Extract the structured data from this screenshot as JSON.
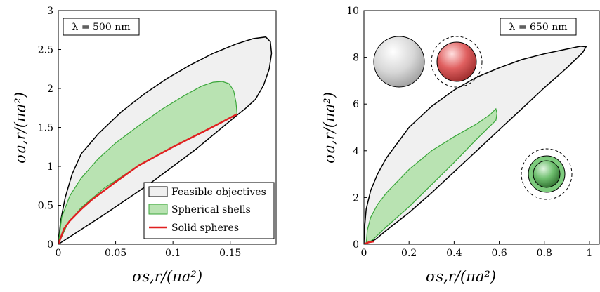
{
  "chart_data": [
    {
      "type": "area",
      "annotation": "λ = 500 nm",
      "xlabel": "σs,r/(πa²)",
      "ylabel": "σa,r/(πa²)",
      "xlim": [
        0,
        0.19
      ],
      "ylim": [
        0,
        3
      ],
      "xticks": [
        "0",
        "0.05",
        "0.1",
        "0.15"
      ],
      "xtick_values": [
        0,
        0.05,
        0.1,
        0.15
      ],
      "yticks": [
        "0",
        "0.5",
        "1",
        "1.5",
        "2",
        "2.5",
        "3"
      ],
      "ytick_values": [
        0,
        0.5,
        1,
        1.5,
        2,
        2.5,
        3
      ],
      "legend": {
        "position": "bottom-right",
        "entries": [
          {
            "label": "Feasible objectives",
            "color": "#f0f0f0",
            "stroke": "#000000",
            "kind": "patch"
          },
          {
            "label": "Spherical shells",
            "color": "#b9e3b2",
            "stroke": "#3aa63a",
            "kind": "patch"
          },
          {
            "label": "Solid spheres",
            "color": "#e02020",
            "kind": "line"
          }
        ]
      },
      "series": [
        {
          "name": "Feasible objectives",
          "kind": "region",
          "fill": "#f0f0f0",
          "stroke": "#000000",
          "points": [
            [
              0,
              0
            ],
            [
              0.002,
              0.3
            ],
            [
              0.006,
              0.6
            ],
            [
              0.012,
              0.9
            ],
            [
              0.02,
              1.16
            ],
            [
              0.035,
              1.42
            ],
            [
              0.055,
              1.7
            ],
            [
              0.075,
              1.93
            ],
            [
              0.095,
              2.13
            ],
            [
              0.115,
              2.3
            ],
            [
              0.135,
              2.45
            ],
            [
              0.155,
              2.57
            ],
            [
              0.17,
              2.64
            ],
            [
              0.181,
              2.66
            ],
            [
              0.185,
              2.6
            ],
            [
              0.186,
              2.45
            ],
            [
              0.184,
              2.25
            ],
            [
              0.179,
              2.04
            ],
            [
              0.172,
              1.86
            ],
            [
              0.163,
              1.74
            ],
            [
              0.157,
              1.67
            ],
            [
              0.12,
              1.22
            ],
            [
              0.08,
              0.78
            ],
            [
              0.04,
              0.38
            ],
            [
              0,
              0
            ]
          ]
        },
        {
          "name": "Spherical shells",
          "kind": "region",
          "fill": "#b9e3b2",
          "stroke": "#3aa63a",
          "points": [
            [
              0,
              0
            ],
            [
              0.003,
              0.35
            ],
            [
              0.01,
              0.62
            ],
            [
              0.02,
              0.85
            ],
            [
              0.035,
              1.1
            ],
            [
              0.05,
              1.3
            ],
            [
              0.07,
              1.52
            ],
            [
              0.09,
              1.73
            ],
            [
              0.11,
              1.91
            ],
            [
              0.125,
              2.03
            ],
            [
              0.135,
              2.08
            ],
            [
              0.143,
              2.09
            ],
            [
              0.149,
              2.06
            ],
            [
              0.153,
              1.97
            ],
            [
              0.155,
              1.82
            ],
            [
              0.156,
              1.67
            ],
            [
              0.13,
              1.47
            ],
            [
              0.1,
              1.25
            ],
            [
              0.07,
              1.01
            ],
            [
              0.04,
              0.72
            ],
            [
              0.02,
              0.47
            ],
            [
              0.008,
              0.26
            ],
            [
              0,
              0
            ]
          ]
        },
        {
          "name": "Solid spheres",
          "kind": "line",
          "color": "#e02020",
          "points": [
            [
              0,
              0
            ],
            [
              0.005,
              0.2
            ],
            [
              0.01,
              0.3
            ],
            [
              0.02,
              0.45
            ],
            [
              0.03,
              0.58
            ],
            [
              0.05,
              0.8
            ],
            [
              0.07,
              1.01
            ],
            [
              0.1,
              1.25
            ],
            [
              0.13,
              1.47
            ],
            [
              0.156,
              1.67
            ]
          ]
        }
      ]
    },
    {
      "type": "area",
      "annotation": "λ = 650 nm",
      "xlabel": "σs,r/(πa²)",
      "ylabel": "σa,r/(πa²)",
      "xlim": [
        0,
        1.05
      ],
      "ylim": [
        0,
        10
      ],
      "xticks": [
        "0",
        "0.2",
        "0.4",
        "0.6",
        "0.8",
        "1"
      ],
      "xtick_values": [
        0,
        0.2,
        0.4,
        0.6,
        0.8,
        1
      ],
      "yticks": [
        "0",
        "2",
        "4",
        "6",
        "8",
        "10"
      ],
      "ytick_values": [
        0,
        2,
        4,
        6,
        8,
        10
      ],
      "series": [
        {
          "name": "Feasible objectives",
          "kind": "region",
          "fill": "#f0f0f0",
          "stroke": "#000000",
          "points": [
            [
              0,
              0
            ],
            [
              0.002,
              0.6
            ],
            [
              0.01,
              1.5
            ],
            [
              0.03,
              2.3
            ],
            [
              0.06,
              3.0
            ],
            [
              0.1,
              3.7
            ],
            [
              0.2,
              5.0
            ],
            [
              0.3,
              5.9
            ],
            [
              0.4,
              6.6
            ],
            [
              0.5,
              7.15
            ],
            [
              0.6,
              7.55
            ],
            [
              0.7,
              7.9
            ],
            [
              0.8,
              8.15
            ],
            [
              0.9,
              8.35
            ],
            [
              0.96,
              8.47
            ],
            [
              0.985,
              8.45
            ],
            [
              0.97,
              8.2
            ],
            [
              0.9,
              7.55
            ],
            [
              0.8,
              6.7
            ],
            [
              0.7,
              5.8
            ],
            [
              0.6,
              4.9
            ],
            [
              0.5,
              4.0
            ],
            [
              0.4,
              3.1
            ],
            [
              0.3,
              2.2
            ],
            [
              0.2,
              1.35
            ],
            [
              0.1,
              0.6
            ],
            [
              0.05,
              0.2
            ],
            [
              0,
              0
            ]
          ]
        },
        {
          "name": "Spherical shells",
          "kind": "region",
          "fill": "#b9e3b2",
          "stroke": "#3aa63a",
          "points": [
            [
              0.01,
              0
            ],
            [
              0.015,
              0.6
            ],
            [
              0.03,
              1.15
            ],
            [
              0.06,
              1.7
            ],
            [
              0.1,
              2.2
            ],
            [
              0.2,
              3.2
            ],
            [
              0.3,
              4.0
            ],
            [
              0.4,
              4.6
            ],
            [
              0.5,
              5.15
            ],
            [
              0.56,
              5.55
            ],
            [
              0.585,
              5.8
            ],
            [
              0.59,
              5.6
            ],
            [
              0.585,
              5.3
            ],
            [
              0.5,
              4.5
            ],
            [
              0.4,
              3.5
            ],
            [
              0.3,
              2.55
            ],
            [
              0.2,
              1.6
            ],
            [
              0.1,
              0.75
            ],
            [
              0.04,
              0.2
            ],
            [
              0.01,
              0
            ]
          ]
        },
        {
          "name": "Solid spheres",
          "kind": "line",
          "color": "#e02020",
          "points": [
            [
              0,
              0
            ],
            [
              0.02,
              0.08
            ],
            [
              0.045,
              0.12
            ]
          ]
        }
      ]
    }
  ]
}
